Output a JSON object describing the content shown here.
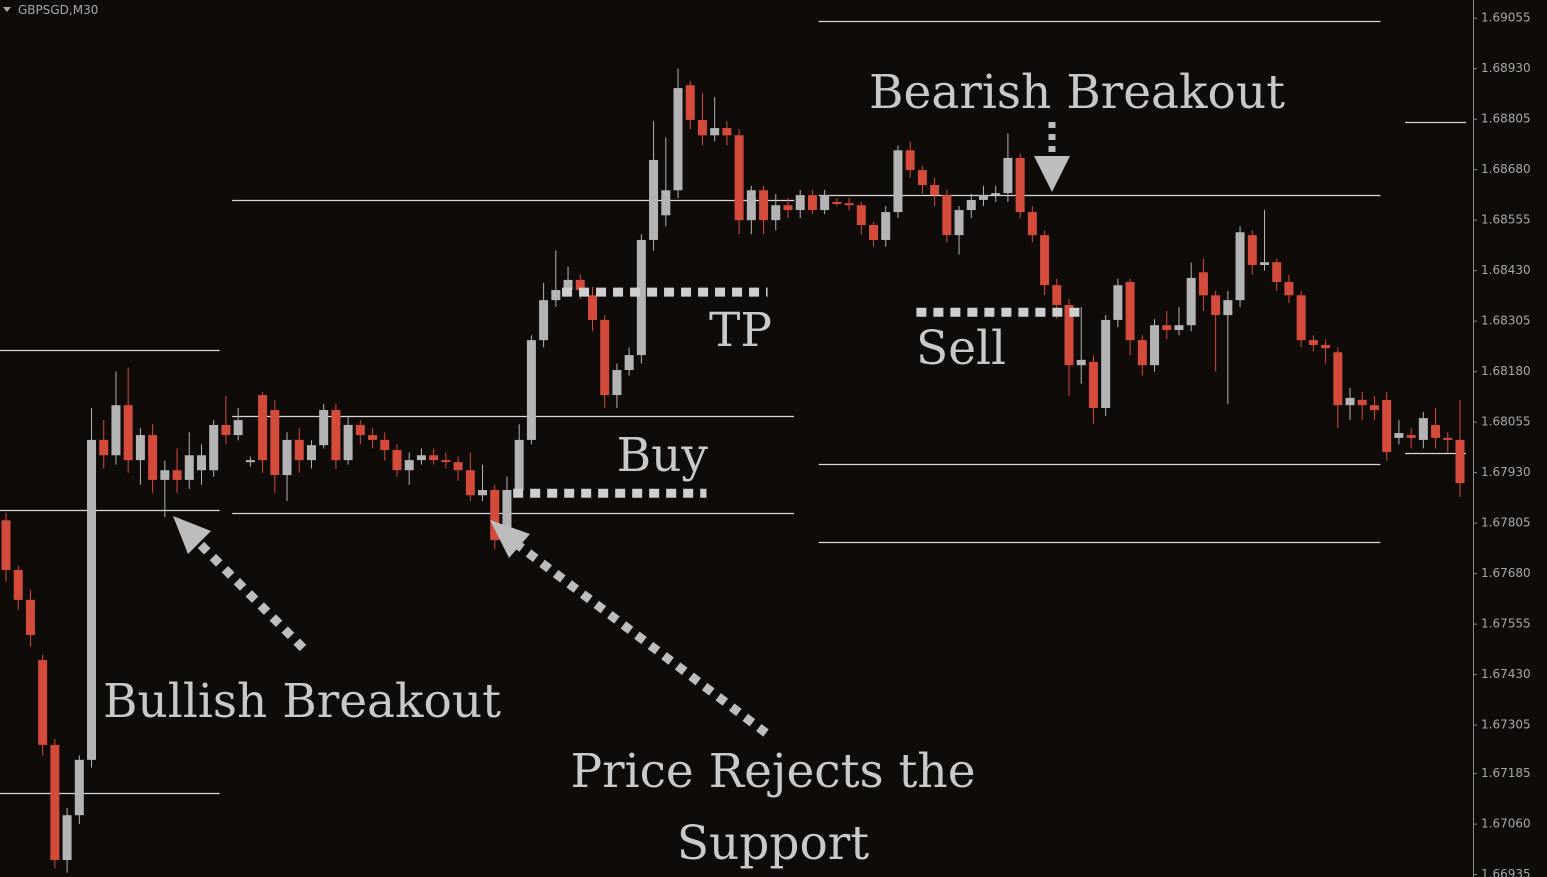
{
  "chart_data": {
    "type": "candlestick",
    "symbol": "GBPSGD,M30",
    "open": [
      1.67812,
      1.67689,
      1.67615,
      1.67466,
      1.67256,
      1.66971,
      1.67082,
      1.67219,
      1.68011,
      1.67973,
      1.68097,
      1.67961,
      1.68023,
      1.67912,
      1.67936,
      1.67912,
      1.67936,
      1.67936,
      1.68048,
      1.68023,
      1.67956,
      1.68122,
      1.68085,
      1.67924,
      1.68011,
      1.67961,
      1.67998,
      1.68085,
      1.67961,
      1.68048,
      1.68023,
      1.68011,
      1.67986,
      1.67936,
      1.67961,
      1.67973,
      1.67961,
      1.67956,
      1.67936,
      1.67874,
      1.67887,
      1.67763,
      1.67887,
      1.68011,
      1.68258,
      1.68357,
      1.68382,
      1.68407,
      1.68369,
      1.68308,
      1.68122,
      1.68184,
      1.68221,
      1.68506,
      1.68567,
      1.68629,
      1.68889,
      1.68803,
      1.68765,
      1.68783,
      1.68765,
      1.68555,
      1.68629,
      1.68555,
      1.68592,
      1.6858,
      1.68617,
      1.6858,
      1.686,
      1.68597,
      1.68592,
      1.68543,
      1.68506,
      1.68575,
      1.68728,
      1.68679,
      1.68642,
      1.68617,
      1.68518,
      1.6858,
      1.68605,
      1.68617,
      1.68622,
      1.68709,
      1.68575,
      1.68518,
      1.68394,
      1.68345,
      1.68196,
      1.68204,
      1.6809,
      1.68308,
      1.68402,
      1.68258,
      1.68196,
      1.68295,
      1.68283,
      1.68295,
      1.68426,
      1.68369,
      1.6832,
      1.68357,
      1.68518,
      1.68444,
      1.68451,
      1.68402,
      1.68369,
      1.68258,
      1.68246,
      1.68228,
      1.68097,
      1.6811,
      1.68097,
      1.6811,
      1.68016,
      1.68023,
      1.68011,
      1.68048,
      1.68016,
      1.68011
    ],
    "high": [
      1.6783,
      1.677,
      1.6764,
      1.6748,
      1.6727,
      1.671,
      1.6723,
      1.6809,
      1.6806,
      1.6818,
      1.6819,
      1.6804,
      1.6805,
      1.6796,
      1.6799,
      1.6803,
      1.68,
      1.6806,
      1.6812,
      1.6809,
      1.6797,
      1.6813,
      1.6811,
      1.6803,
      1.6804,
      1.6801,
      1.681,
      1.681,
      1.6807,
      1.6806,
      1.6804,
      1.6803,
      1.68,
      1.6798,
      1.6799,
      1.6799,
      1.6798,
      1.6797,
      1.6798,
      1.6795,
      1.679,
      1.6792,
      1.6805,
      1.6827,
      1.684,
      1.6848,
      1.6844,
      1.6842,
      1.6839,
      1.6832,
      1.682,
      1.6824,
      1.6852,
      1.688,
      1.6876,
      1.6893,
      1.689,
      1.6887,
      1.6886,
      1.688,
      1.6878,
      1.6864,
      1.6864,
      1.6862,
      1.6861,
      1.6863,
      1.6863,
      1.6863,
      1.6861,
      1.6861,
      1.686,
      1.6855,
      1.6859,
      1.6874,
      1.6875,
      1.6869,
      1.6866,
      1.6863,
      1.6859,
      1.6862,
      1.6864,
      1.6864,
      1.6877,
      1.6872,
      1.6859,
      1.6853,
      1.6841,
      1.6836,
      1.6834,
      1.6822,
      1.6832,
      1.6841,
      1.6841,
      1.6827,
      1.6831,
      1.6833,
      1.6834,
      1.6845,
      1.6846,
      1.6838,
      1.6838,
      1.6854,
      1.6853,
      1.6858,
      1.6846,
      1.6842,
      1.6838,
      1.6827,
      1.6826,
      1.6824,
      1.6814,
      1.6813,
      1.6812,
      1.6813,
      1.6806,
      1.6804,
      1.6808,
      1.6809,
      1.6803,
      1.6811
    ],
    "low": [
      1.6766,
      1.6759,
      1.675,
      1.6723,
      1.6695,
      1.6694,
      1.6706,
      1.672,
      1.6794,
      1.6795,
      1.6793,
      1.679,
      1.6788,
      1.6782,
      1.6788,
      1.6789,
      1.679,
      1.6792,
      1.68,
      1.6801,
      1.67945,
      1.6793,
      1.6788,
      1.6786,
      1.6793,
      1.6794,
      1.6799,
      1.6794,
      1.6795,
      1.68,
      1.6799,
      1.6796,
      1.6792,
      1.679,
      1.6795,
      1.6795,
      1.6794,
      1.6791,
      1.6786,
      1.6786,
      1.6774,
      1.6775,
      1.6787,
      1.68,
      1.6824,
      1.6834,
      1.6837,
      1.6836,
      1.6828,
      1.6809,
      1.6809,
      1.6817,
      1.682,
      1.6848,
      1.6854,
      1.6861,
      1.6878,
      1.6874,
      1.6875,
      1.6874,
      1.6852,
      1.6852,
      1.6852,
      1.6853,
      1.6856,
      1.6856,
      1.6857,
      1.6857,
      1.6859,
      1.6858,
      1.6852,
      1.6849,
      1.6849,
      1.6856,
      1.6866,
      1.6862,
      1.6859,
      1.685,
      1.6847,
      1.6856,
      1.6859,
      1.686,
      1.686,
      1.6856,
      1.685,
      1.6837,
      1.6831,
      1.6812,
      1.6815,
      1.6805,
      1.6807,
      1.6829,
      1.6822,
      1.6817,
      1.6818,
      1.6826,
      1.6827,
      1.6828,
      1.6833,
      1.6818,
      1.681,
      1.6834,
      1.6842,
      1.6843,
      1.6838,
      1.6835,
      1.6824,
      1.6823,
      1.682,
      1.6804,
      1.6806,
      1.6806,
      1.6806,
      1.6796,
      1.68,
      1.6799,
      1.6799,
      1.6799,
      1.6798,
      1.6787
    ],
    "close": [
      1.67689,
      1.67615,
      1.67528,
      1.67256,
      1.66971,
      1.67082,
      1.67219,
      1.68011,
      1.67973,
      1.68097,
      1.67961,
      1.68023,
      1.67912,
      1.67936,
      1.67912,
      1.67973,
      1.67973,
      1.68048,
      1.68023,
      1.6806,
      1.67961,
      1.67961,
      1.67924,
      1.68011,
      1.67961,
      1.67998,
      1.68085,
      1.67961,
      1.68048,
      1.68023,
      1.68011,
      1.67986,
      1.67936,
      1.67961,
      1.67973,
      1.67961,
      1.67956,
      1.67936,
      1.67874,
      1.67887,
      1.67763,
      1.67887,
      1.68011,
      1.68258,
      1.68357,
      1.68382,
      1.68407,
      1.68382,
      1.68308,
      1.68122,
      1.68184,
      1.68221,
      1.68506,
      1.68704,
      1.68629,
      1.68882,
      1.68803,
      1.68765,
      1.68783,
      1.68765,
      1.68555,
      1.68629,
      1.68555,
      1.68592,
      1.6858,
      1.68617,
      1.6858,
      1.68617,
      1.68597,
      1.68592,
      1.68543,
      1.68506,
      1.68575,
      1.68728,
      1.68679,
      1.68642,
      1.68617,
      1.68518,
      1.6858,
      1.68605,
      1.68617,
      1.68622,
      1.68709,
      1.68575,
      1.68518,
      1.68394,
      1.68345,
      1.68196,
      1.68209,
      1.6809,
      1.68308,
      1.68394,
      1.68258,
      1.68196,
      1.68295,
      1.68283,
      1.68295,
      1.68412,
      1.68369,
      1.6832,
      1.68357,
      1.68525,
      1.68444,
      1.68451,
      1.68402,
      1.68369,
      1.68258,
      1.68246,
      1.68238,
      1.68097,
      1.68115,
      1.68097,
      1.68085,
      1.67981,
      1.68028,
      1.68016,
      1.68065,
      1.68016,
      1.68011,
      1.67904
    ],
    "up_color": "#b4b4b4",
    "down_color": "#d44b3b",
    "ylim": [
      1.66929,
      1.691
    ],
    "yticks": [
      1.69055,
      {
        "value": 1.6893,
        "label": "1.68930"
      },
      1.68805,
      {
        "value": 1.6868,
        "label": "1.68680"
      },
      1.68555,
      {
        "value": 1.6843,
        "label": "1.68430"
      },
      1.68305,
      {
        "value": 1.6818,
        "label": "1.68180"
      },
      1.68055,
      {
        "value": 1.6793,
        "label": "1.67930"
      },
      1.67805,
      {
        "value": 1.6768,
        "label": "1.67680"
      },
      1.67555,
      {
        "value": 1.6743,
        "label": "1.67430"
      },
      1.67305,
      1.67185,
      {
        "value": 1.6706,
        "label": "1.67060"
      },
      1.66935
    ],
    "levels": [
      {
        "value": 1.68233,
        "start": 0,
        "end": 17
      },
      {
        "value": 1.67837,
        "start": 0,
        "end": 17
      },
      {
        "value": 1.67137,
        "start": 0,
        "end": 17
      },
      {
        "value": 1.68605,
        "start": 19,
        "end": 64
      },
      {
        "value": 1.6807,
        "start": 19,
        "end": 64
      },
      {
        "value": 1.6783,
        "start": 19,
        "end": 64
      },
      {
        "value": 1.69049,
        "start": 67,
        "end": 112
      },
      {
        "value": 1.68617,
        "start": 67,
        "end": 112
      },
      {
        "value": 1.67951,
        "start": 67,
        "end": 112
      },
      {
        "value": 1.67758,
        "start": 67,
        "end": 112
      },
      {
        "value": 1.68798,
        "start": 115,
        "end": 119
      },
      {
        "value": 1.67978,
        "start": 115,
        "end": 119
      }
    ],
    "trades": [
      {
        "label": "TP",
        "value": 1.68377,
        "start": 46,
        "end": 62
      },
      {
        "label": "Buy",
        "value": 1.67879,
        "start": 42,
        "end": 57
      },
      {
        "label": "Sell",
        "value": 1.68327,
        "start": 75,
        "end": 88
      }
    ],
    "annotations": [
      {
        "lines": [
          "Bearish Breakout"
        ]
      },
      {
        "lines": [
          "Bullish Breakout"
        ]
      },
      {
        "lines": [
          "Price Rejects the",
          "Support"
        ]
      }
    ]
  }
}
